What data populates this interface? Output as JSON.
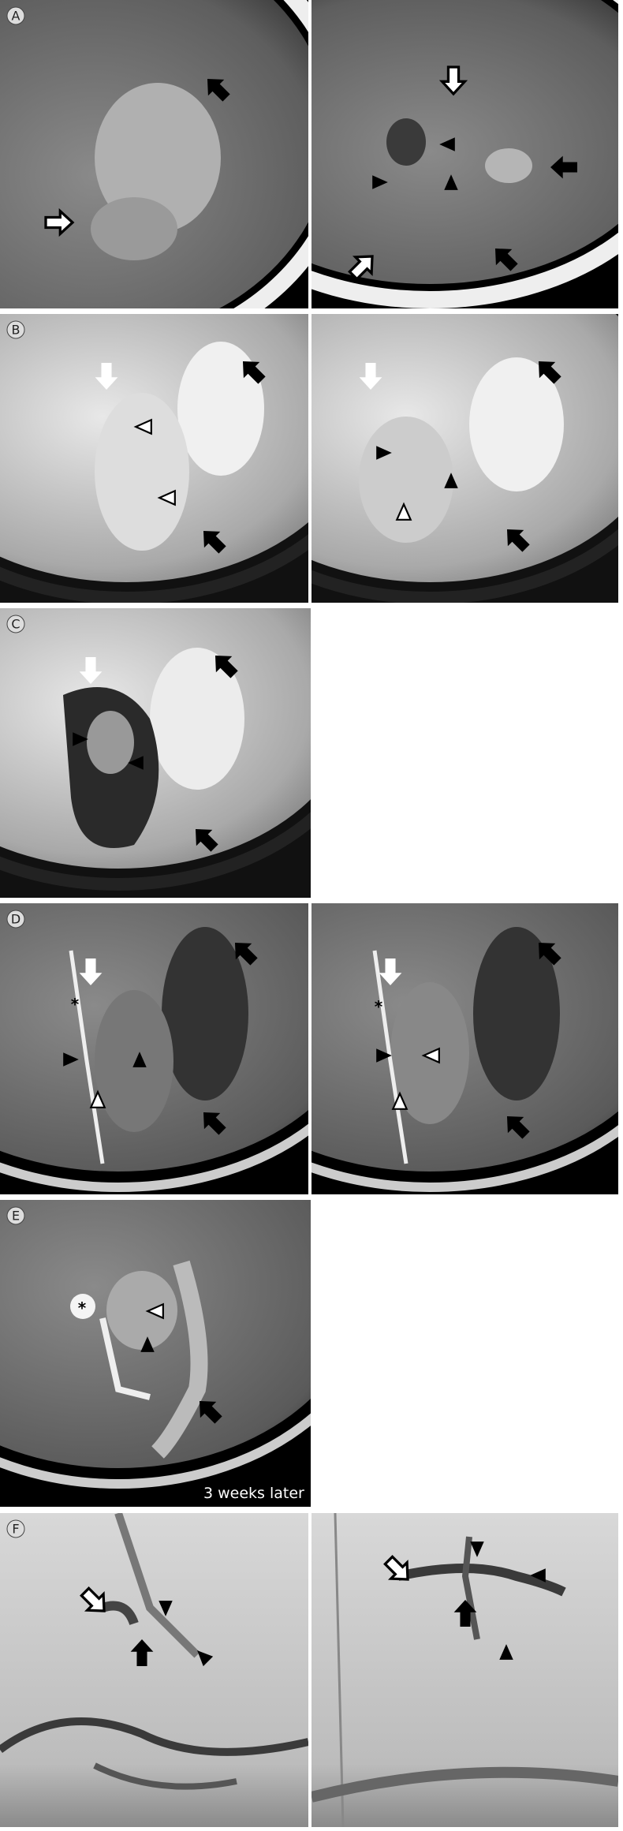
{
  "panels": [
    {
      "label": "A"
    },
    {
      "label": "B"
    },
    {
      "label": "C"
    },
    {
      "label": "D",
      "annotations": [
        "*",
        "*"
      ]
    },
    {
      "label": "E",
      "annotations": [
        "*"
      ],
      "caption": "3 weeks later"
    },
    {
      "label": "F"
    }
  ]
}
